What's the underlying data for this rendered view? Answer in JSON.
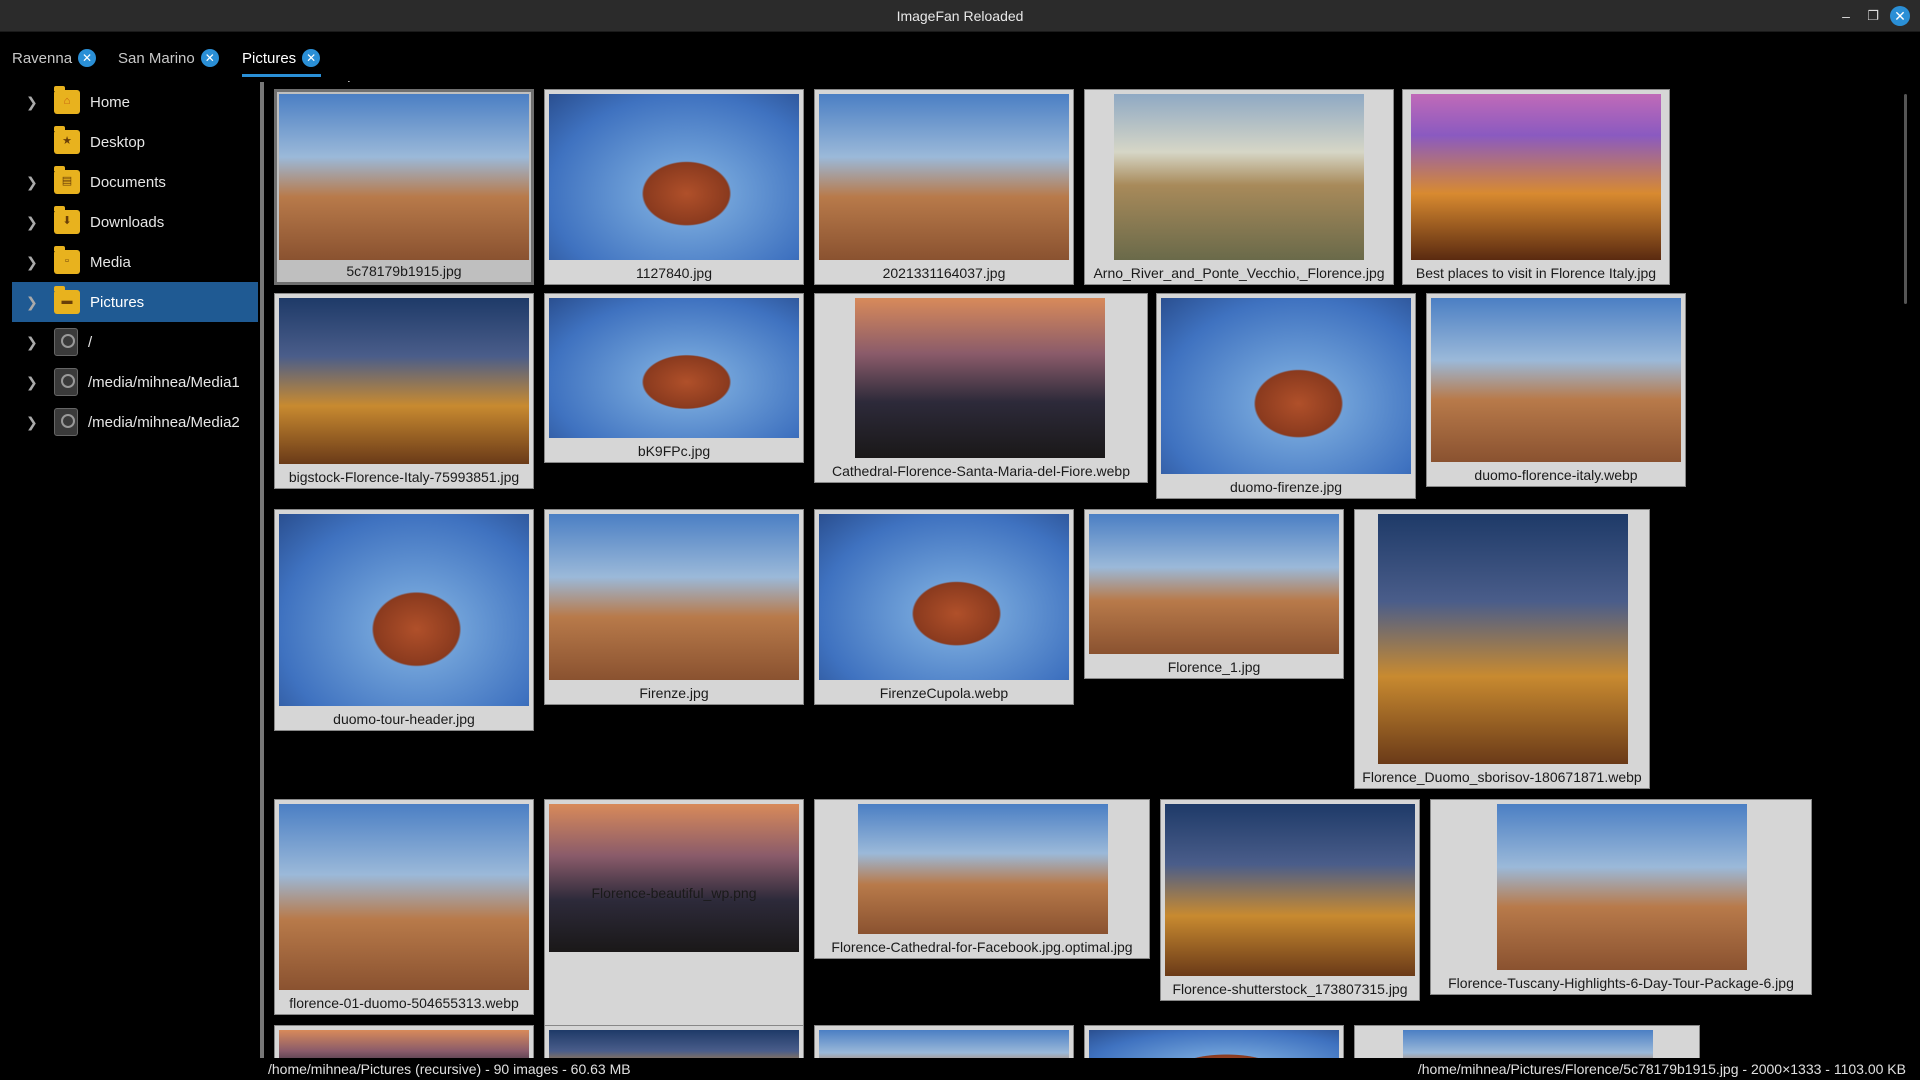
{
  "window": {
    "title": "ImageFan Reloaded"
  },
  "tabs": [
    {
      "label": "Ravenna"
    },
    {
      "label": "San Marino"
    },
    {
      "label": "Pictures"
    }
  ],
  "sidebar": {
    "items": [
      {
        "label": "Home",
        "icon": "home-folder-icon"
      },
      {
        "label": "Desktop",
        "icon": "desktop-folder-icon"
      },
      {
        "label": "Documents",
        "icon": "documents-folder-icon"
      },
      {
        "label": "Downloads",
        "icon": "downloads-folder-icon"
      },
      {
        "label": "Media",
        "icon": "media-folder-icon"
      },
      {
        "label": "Pictures",
        "icon": "pictures-folder-icon",
        "selected": true
      },
      {
        "label": "/",
        "icon": "drive-icon"
      },
      {
        "label": "/media/mihnea/Media1",
        "icon": "drive-icon"
      },
      {
        "label": "/media/mihnea/Media2",
        "icon": "drive-icon"
      }
    ]
  },
  "thumbnails": [
    {
      "name": "5c78179b1915.jpg"
    },
    {
      "name": "1127840.jpg"
    },
    {
      "name": "2021331164037.jpg"
    },
    {
      "name": "Arno_River_and_Ponte_Vecchio,_Florence.jpg"
    },
    {
      "name": "Best places to visit in Florence Italy.jpg"
    },
    {
      "name": "bigstock-Florence-Italy-75993851.jpg"
    },
    {
      "name": "bK9FPc.jpg"
    },
    {
      "name": "Cathedral-Florence-Santa-Maria-del-Fiore.webp"
    },
    {
      "name": "duomo-firenze.jpg"
    },
    {
      "name": "duomo-florence-italy.webp"
    },
    {
      "name": "duomo-tour-header.jpg"
    },
    {
      "name": "Firenze.jpg"
    },
    {
      "name": "FirenzeCupola.webp"
    },
    {
      "name": "Florence_1.jpg"
    },
    {
      "name": "Florence_Duomo_sborisov-180671871.webp"
    },
    {
      "name": "florence-01-duomo-504655313.webp"
    },
    {
      "name": "Florence-beautiful_wp.png"
    },
    {
      "name": "Florence-Cathedral-for-Facebook.jpg.optimal.jpg"
    },
    {
      "name": "Florence-shutterstock_173807315.jpg"
    },
    {
      "name": "Florence-Tuscany-Highlights-6-Day-Tour-Package-6.jpg"
    },
    {
      "name": ""
    },
    {
      "name": ""
    },
    {
      "name": ""
    },
    {
      "name": ""
    },
    {
      "name": ""
    }
  ],
  "status": {
    "left": "/home/mihnea/Pictures (recursive) - 90 images - 60.63 MB",
    "right": "/home/mihnea/Pictures/Florence/5c78179b1915.jpg - 2000×1333 - 1103.00 KB"
  }
}
